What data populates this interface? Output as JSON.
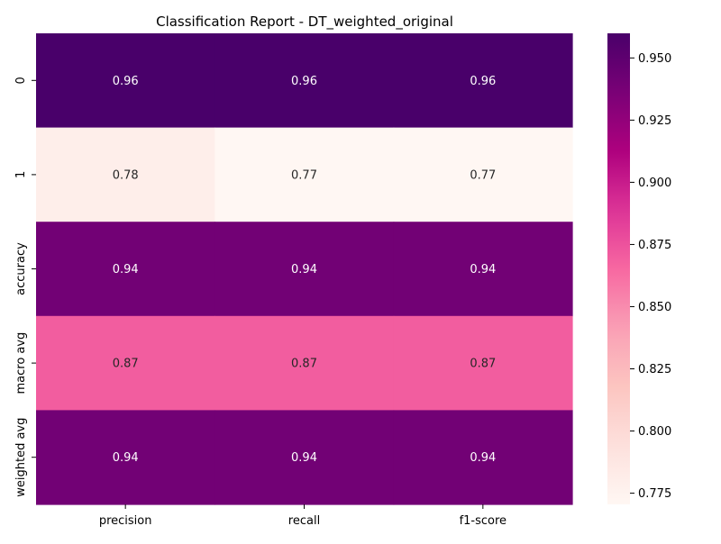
{
  "chart_data": {
    "type": "heatmap",
    "title": "Classification Report - DT_weighted_original",
    "xlabel": "",
    "ylabel": "",
    "columns": [
      "precision",
      "recall",
      "f1-score"
    ],
    "rows": [
      "0",
      "1",
      "accuracy",
      "macro avg",
      "weighted avg"
    ],
    "values": [
      [
        0.96,
        0.96,
        0.96
      ],
      [
        0.78,
        0.77,
        0.77
      ],
      [
        0.94,
        0.94,
        0.94
      ],
      [
        0.87,
        0.87,
        0.87
      ],
      [
        0.94,
        0.94,
        0.94
      ]
    ],
    "cell_labels": [
      [
        "0.96",
        "0.96",
        "0.96"
      ],
      [
        "0.78",
        "0.77",
        "0.77"
      ],
      [
        "0.94",
        "0.94",
        "0.94"
      ],
      [
        "0.87",
        "0.87",
        "0.87"
      ],
      [
        "0.94",
        "0.94",
        "0.94"
      ]
    ],
    "colormap": "RdPu",
    "color_range": [
      0.7705,
      0.9599
    ],
    "colorbar_ticks": [
      "0.775",
      "0.800",
      "0.825",
      "0.850",
      "0.875",
      "0.900",
      "0.925",
      "0.950"
    ],
    "colorbar_tick_values": [
      0.775,
      0.8,
      0.825,
      0.85,
      0.875,
      0.9,
      0.925,
      0.95
    ],
    "annotation_text_colors": {
      "dark_cell": "#ffffff",
      "light_cell": "#262626"
    },
    "grid": false,
    "legend": "colorbar-right"
  }
}
